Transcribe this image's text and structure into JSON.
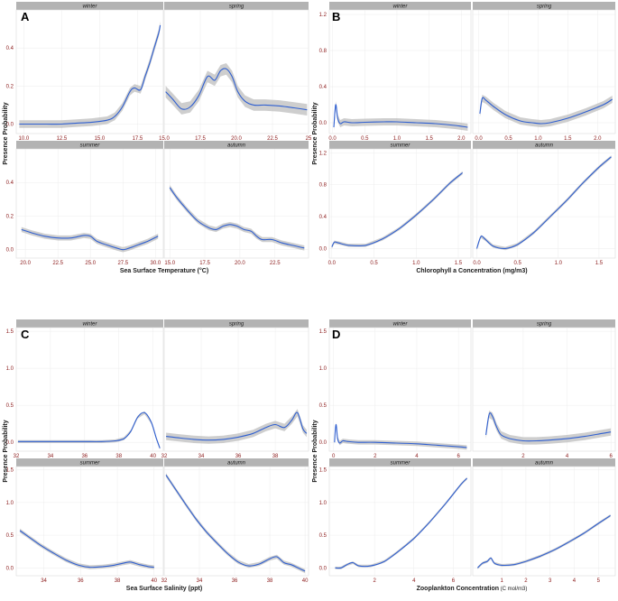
{
  "chart_data": [
    {
      "type": "line",
      "panel_label": "A",
      "ylabel": "Presence Probability",
      "xlabel": "Sea Surface Temperature (°C)",
      "ylim": [
        -0.05,
        0.6
      ],
      "yticks": [
        0.0,
        0.2,
        0.4
      ],
      "ytick_labels": [
        "0.0",
        "0.2",
        "0.4"
      ],
      "facets": [
        {
          "name": "winter",
          "xlim": [
            9.5,
            19.2
          ],
          "xticks": [
            10,
            12.5,
            15,
            17.5
          ],
          "xtick_labels": [
            "10.0",
            "12.5",
            "15.0",
            "17.5"
          ],
          "x": [
            9.7,
            10.5,
            11.5,
            12.5,
            13.5,
            14.5,
            15.5,
            16.0,
            16.5,
            17.0,
            17.3,
            17.7,
            18.0,
            18.3,
            18.6,
            18.9,
            19.0
          ],
          "y": [
            0.0,
            0.0,
            0.0,
            0.0,
            0.005,
            0.01,
            0.02,
            0.04,
            0.09,
            0.17,
            0.19,
            0.18,
            0.25,
            0.32,
            0.4,
            0.48,
            0.52
          ],
          "ci": 0.02
        },
        {
          "name": "spring",
          "xlim": [
            15,
            25
          ],
          "xticks": [
            15,
            17.5,
            20,
            22.5,
            25
          ],
          "xtick_labels": [
            "15.0",
            "17.5",
            "20.0",
            "22.5",
            "25"
          ],
          "x": [
            15.1,
            15.6,
            16.2,
            16.8,
            17.4,
            18.0,
            18.5,
            18.9,
            19.3,
            19.7,
            20.1,
            20.6,
            21.2,
            22,
            23,
            24,
            24.9
          ],
          "y": [
            0.17,
            0.13,
            0.08,
            0.09,
            0.15,
            0.25,
            0.23,
            0.28,
            0.29,
            0.25,
            0.17,
            0.12,
            0.1,
            0.1,
            0.095,
            0.085,
            0.075
          ],
          "ci": 0.03
        },
        {
          "name": "summer",
          "xlim": [
            19.3,
            30.6
          ],
          "xticks": [
            20,
            22.5,
            25,
            27.5,
            30
          ],
          "xtick_labels": [
            "20.0",
            "22.5",
            "25.0",
            "27.5",
            "30.0"
          ],
          "x": [
            19.7,
            20.5,
            21.5,
            22.5,
            23.5,
            24.5,
            25.0,
            25.5,
            26.2,
            27.0,
            27.5,
            28.0,
            28.7,
            29.4,
            30.2
          ],
          "y": [
            0.12,
            0.1,
            0.08,
            0.07,
            0.07,
            0.085,
            0.08,
            0.05,
            0.03,
            0.01,
            0.0,
            0.01,
            0.03,
            0.05,
            0.08
          ],
          "ci": 0.015
        },
        {
          "name": "autumn",
          "xlim": [
            14.6,
            24.9
          ],
          "xticks": [
            15,
            17.5,
            20,
            22.5
          ],
          "xtick_labels": [
            "15.0",
            "17.5",
            "20.0",
            "22.5"
          ],
          "x": [
            15.0,
            15.5,
            16.2,
            17.0,
            17.8,
            18.3,
            18.8,
            19.3,
            19.8,
            20.3,
            20.8,
            21.2,
            21.6,
            22.3,
            23.0,
            23.8,
            24.6
          ],
          "y": [
            0.37,
            0.31,
            0.24,
            0.17,
            0.13,
            0.12,
            0.14,
            0.15,
            0.14,
            0.12,
            0.11,
            0.08,
            0.06,
            0.06,
            0.04,
            0.025,
            0.01
          ],
          "ci": 0.015
        }
      ]
    },
    {
      "type": "line",
      "panel_label": "B",
      "ylabel": "Presence Probability",
      "xlabel": "Chlorophyll a Concentration (mg/m3)",
      "ylim": [
        -0.12,
        1.25
      ],
      "yticks": [
        0.0,
        0.4,
        0.8,
        1.2
      ],
      "ytick_labels": [
        "0.0",
        "0.4",
        "0.8",
        "1.2"
      ],
      "facets": [
        {
          "name": "winter",
          "xlim": [
            -0.05,
            2.15
          ],
          "xticks": [
            0,
            0.5,
            1,
            1.5,
            2
          ],
          "xtick_labels": [
            "0.0",
            "0.5",
            "1.0",
            "1.5",
            "2.0"
          ],
          "x": [
            0.02,
            0.05,
            0.08,
            0.12,
            0.18,
            0.3,
            0.5,
            0.8,
            1.0,
            1.3,
            1.6,
            1.9,
            2.1
          ],
          "y": [
            -0.05,
            0.2,
            0.05,
            -0.01,
            0.01,
            0.0,
            0.005,
            0.01,
            0.01,
            0.0,
            -0.01,
            -0.03,
            -0.05
          ],
          "ci": 0.04
        },
        {
          "name": "spring",
          "xlim": [
            -0.1,
            2.3
          ],
          "xticks": [
            0,
            0.5,
            1,
            1.5,
            2
          ],
          "xtick_labels": [
            "0.0",
            "0.5",
            "1.0",
            "1.5",
            "2.0"
          ],
          "x": [
            0.02,
            0.06,
            0.12,
            0.25,
            0.45,
            0.7,
            0.9,
            1.05,
            1.2,
            1.5,
            1.8,
            2.1,
            2.25
          ],
          "y": [
            0.1,
            0.27,
            0.25,
            0.18,
            0.09,
            0.02,
            0.0,
            -0.01,
            0.0,
            0.05,
            0.12,
            0.2,
            0.26
          ],
          "ci": 0.04
        },
        {
          "name": "summer",
          "xlim": [
            -0.03,
            1.65
          ],
          "xticks": [
            0,
            0.5,
            1,
            1.5
          ],
          "xtick_labels": [
            "0.0",
            "0.5",
            "1.0",
            "1.5"
          ],
          "x": [
            0.0,
            0.03,
            0.08,
            0.2,
            0.4,
            0.6,
            0.8,
            1.0,
            1.2,
            1.4,
            1.55
          ],
          "y": [
            0.02,
            0.08,
            0.07,
            0.04,
            0.04,
            0.12,
            0.25,
            0.42,
            0.61,
            0.82,
            0.95
          ],
          "ci": 0.02
        },
        {
          "name": "autumn",
          "xlim": [
            -0.05,
            1.7
          ],
          "xticks": [
            0,
            0.5,
            1,
            1.5
          ],
          "xtick_labels": [
            "0.0",
            "0.5",
            "1.0",
            "1.5"
          ],
          "x": [
            0.0,
            0.05,
            0.1,
            0.2,
            0.35,
            0.5,
            0.7,
            0.9,
            1.1,
            1.3,
            1.5,
            1.65
          ],
          "y": [
            0.0,
            0.15,
            0.12,
            0.03,
            0.0,
            0.05,
            0.2,
            0.4,
            0.6,
            0.82,
            1.02,
            1.15
          ],
          "ci": 0.02
        }
      ]
    },
    {
      "type": "line",
      "panel_label": "C",
      "ylabel": "Presence Probability",
      "xlabel": "Sea Surface Salinity (ppt)",
      "ylim": [
        -0.12,
        1.55
      ],
      "yticks": [
        0.0,
        0.5,
        1.0,
        1.5
      ],
      "ytick_labels": [
        "0.0",
        "0.5",
        "1.0",
        "1.5"
      ],
      "facets": [
        {
          "name": "winter",
          "xlim": [
            32,
            40.6
          ],
          "xticks": [
            32,
            34,
            36,
            38,
            40
          ],
          "xtick_labels": [
            "32",
            "34",
            "36",
            "38",
            "40"
          ],
          "x": [
            32.1,
            33,
            34,
            35,
            36,
            37,
            37.8,
            38.3,
            38.7,
            39.1,
            39.5,
            39.9,
            40.2,
            40.4
          ],
          "y": [
            0.01,
            0.01,
            0.01,
            0.01,
            0.01,
            0.01,
            0.02,
            0.05,
            0.15,
            0.34,
            0.4,
            0.27,
            0.05,
            -0.08
          ],
          "ci": 0.02
        },
        {
          "name": "spring",
          "xlim": [
            32,
            39.8
          ],
          "xticks": [
            32,
            34,
            36,
            38
          ],
          "xtick_labels": [
            "32",
            "34",
            "36",
            "38"
          ],
          "x": [
            32.1,
            32.8,
            33.6,
            34.4,
            35.2,
            36.0,
            36.8,
            37.5,
            38.0,
            38.5,
            38.9,
            39.2,
            39.5,
            39.7
          ],
          "y": [
            0.08,
            0.06,
            0.04,
            0.03,
            0.04,
            0.07,
            0.12,
            0.2,
            0.24,
            0.2,
            0.3,
            0.4,
            0.18,
            0.12
          ],
          "ci": 0.05
        },
        {
          "name": "summer",
          "xlim": [
            32.5,
            40.5
          ],
          "xticks": [
            34,
            36,
            38,
            40
          ],
          "xtick_labels": [
            "34",
            "36",
            "38",
            "40"
          ],
          "x": [
            32.7,
            33.2,
            33.8,
            34.5,
            35.2,
            35.9,
            36.5,
            37.2,
            37.8,
            38.3,
            38.7,
            39.2,
            39.7,
            40.0
          ],
          "y": [
            0.57,
            0.47,
            0.35,
            0.23,
            0.12,
            0.04,
            0.01,
            0.02,
            0.04,
            0.07,
            0.09,
            0.05,
            0.02,
            0.01
          ],
          "ci": 0.03
        },
        {
          "name": "autumn",
          "xlim": [
            32,
            40.2
          ],
          "xticks": [
            32,
            34,
            36,
            38,
            40
          ],
          "xtick_labels": [
            "32",
            "34",
            "36",
            "38",
            "40"
          ],
          "x": [
            32.1,
            32.6,
            33.2,
            33.8,
            34.4,
            35.0,
            35.6,
            36.2,
            36.8,
            37.4,
            38.0,
            38.4,
            38.8,
            39.2,
            39.6,
            40.0
          ],
          "y": [
            1.42,
            1.22,
            0.98,
            0.75,
            0.55,
            0.38,
            0.22,
            0.09,
            0.03,
            0.06,
            0.14,
            0.17,
            0.08,
            0.05,
            0.0,
            -0.05
          ],
          "ci": 0.03
        }
      ]
    },
    {
      "type": "line",
      "panel_label": "D",
      "ylabel": "Presence Probability",
      "xlabel": "Zooplankton Concentration",
      "xlabel_unit": "(C mol/m3)",
      "ylim": [
        -0.12,
        1.55
      ],
      "yticks": [
        0.0,
        0.5,
        1.0,
        1.5
      ],
      "ytick_labels": [
        "0.0",
        "0.5",
        "1.0",
        "1.5"
      ],
      "facets": [
        {
          "name": "winter",
          "xlim": [
            -0.2,
            6.6
          ],
          "xticks": [
            0,
            2,
            4,
            6
          ],
          "xtick_labels": [
            "0",
            "2",
            "4",
            "6"
          ],
          "x": [
            0.05,
            0.12,
            0.2,
            0.3,
            0.45,
            0.7,
            1.2,
            2,
            3,
            4,
            5,
            6,
            6.4
          ],
          "y": [
            0.0,
            0.24,
            0.05,
            -0.01,
            0.02,
            0.01,
            0.0,
            0.0,
            -0.01,
            -0.02,
            -0.04,
            -0.06,
            -0.07
          ],
          "ci": 0.03
        },
        {
          "name": "spring",
          "xlim": [
            -0.3,
            6.2
          ],
          "xticks": [
            2,
            4,
            6
          ],
          "xtick_labels": [
            "2",
            "4",
            "6"
          ],
          "x": [
            0.3,
            0.45,
            0.6,
            0.8,
            1.0,
            1.4,
            2,
            2.6,
            3.2,
            4,
            4.8,
            5.6,
            6.0
          ],
          "y": [
            0.1,
            0.38,
            0.35,
            0.2,
            0.1,
            0.05,
            0.02,
            0.02,
            0.03,
            0.05,
            0.08,
            0.12,
            0.14
          ],
          "ci": 0.05
        },
        {
          "name": "summer",
          "xlim": [
            -0.3,
            6.9
          ],
          "xticks": [
            2,
            4,
            6
          ],
          "xtick_labels": [
            "2",
            "4",
            "6"
          ],
          "x": [
            0.0,
            0.3,
            0.6,
            0.9,
            1.2,
            1.8,
            2.5,
            3.2,
            4.0,
            4.8,
            5.6,
            6.4,
            6.7
          ],
          "y": [
            0.0,
            0.0,
            0.05,
            0.08,
            0.03,
            0.03,
            0.1,
            0.25,
            0.45,
            0.7,
            0.98,
            1.28,
            1.37
          ],
          "ci": 0.02
        },
        {
          "name": "autumn",
          "xlim": [
            -0.2,
            5.7
          ],
          "xticks": [
            1,
            2,
            3,
            4,
            5
          ],
          "xtick_labels": [
            "1",
            "2",
            "3",
            "4",
            "5"
          ],
          "x": [
            0.0,
            0.2,
            0.4,
            0.55,
            0.7,
            1.0,
            1.5,
            2.0,
            2.6,
            3.2,
            3.8,
            4.4,
            5.0,
            5.5
          ],
          "y": [
            0.0,
            0.07,
            0.1,
            0.15,
            0.07,
            0.04,
            0.05,
            0.1,
            0.18,
            0.28,
            0.4,
            0.53,
            0.68,
            0.8
          ],
          "ci": 0.02
        }
      ]
    }
  ]
}
